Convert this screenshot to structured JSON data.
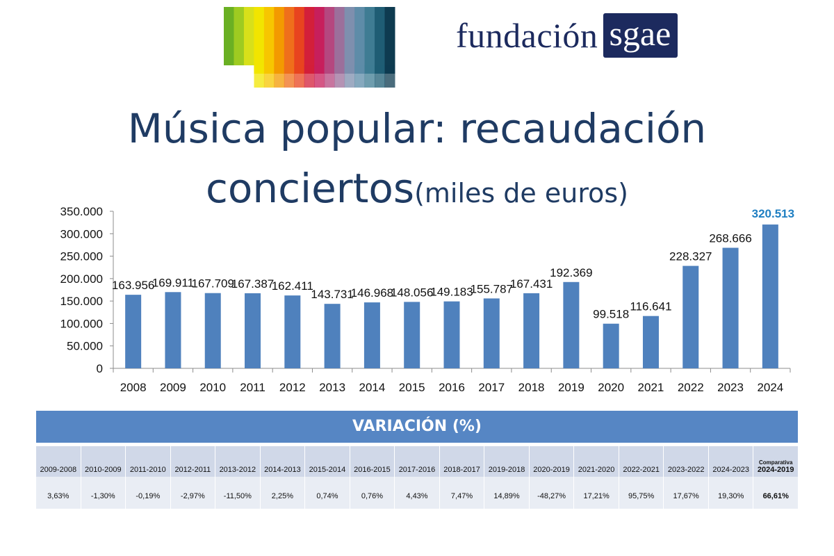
{
  "brand": {
    "name": "fundación",
    "box": "sgae"
  },
  "logo": {
    "colors": [
      "#6ab023",
      "#9ecb21",
      "#d8e01a",
      "#f2e500",
      "#f7c600",
      "#f39a00",
      "#ef6f1b",
      "#e8441f",
      "#d31f3a",
      "#c71f5c",
      "#b5477f",
      "#9c6f9b",
      "#7e8fae",
      "#5e8ca8",
      "#3f7c93",
      "#1f5d74",
      "#0e3b50"
    ]
  },
  "title": {
    "line1": "Música popular: recaudación",
    "line2": "conciertos",
    "unit": "(miles de euros)"
  },
  "chart_data": {
    "type": "bar",
    "title": "Música popular: recaudación conciertos (miles de euros)",
    "categories": [
      "2008",
      "2009",
      "2010",
      "2011",
      "2012",
      "2013",
      "2014",
      "2015",
      "2016",
      "2017",
      "2018",
      "2019",
      "2020",
      "2021",
      "2022",
      "2023",
      "2024"
    ],
    "values": [
      163956,
      169911,
      167709,
      167387,
      162411,
      143731,
      146968,
      148056,
      149183,
      155787,
      167431,
      192369,
      99518,
      116641,
      228327,
      268666,
      320513
    ],
    "value_labels": [
      "163.956",
      "169.911",
      "167.709",
      "167.387",
      "162.411",
      "143.731",
      "146.968",
      "148.056",
      "149.183",
      "155.787",
      "167.431",
      "192.369",
      "99.518",
      "116.641",
      "228.327",
      "268.666",
      "320.513"
    ],
    "highlight_last": true,
    "ylim": [
      0,
      350000
    ],
    "yticks": [
      0,
      50000,
      100000,
      150000,
      200000,
      250000,
      300000,
      350000
    ],
    "ytick_labels": [
      "0",
      "50.000",
      "100.000",
      "150.000",
      "200.000",
      "250.000",
      "300.000",
      "350.000"
    ],
    "bar_color": "#4f81bd",
    "highlight_color": "#1f7fc2",
    "xlabel": "",
    "ylabel": ""
  },
  "variation": {
    "title": "VARIACIÓN (%)",
    "headers": [
      "2009-2008",
      "2010-2009",
      "2011-2010",
      "2012-2011",
      "2013-2012",
      "2014-2013",
      "2015-2014",
      "2016-2015",
      "2017-2016",
      "2018-2017",
      "2019-2018",
      "2020-2019",
      "2021-2020",
      "2022-2021",
      "2023-2022",
      "2024-2023"
    ],
    "values": [
      "3,63%",
      "-1,30%",
      "-0,19%",
      "-2,97%",
      "-11,50%",
      "2,25%",
      "0,74%",
      "0,76%",
      "4,43%",
      "7,47%",
      "14,89%",
      "-48,27%",
      "17,21%",
      "95,75%",
      "17,67%",
      "19,30%"
    ],
    "comparativa": {
      "label_small": "Comparativa",
      "label": "2024-2019",
      "value": "66,61%"
    }
  }
}
